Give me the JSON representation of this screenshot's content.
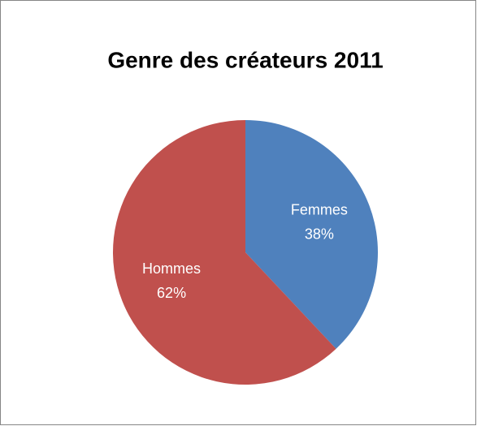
{
  "chart_data": {
    "type": "pie",
    "title": "Genre des créateurs 2011",
    "categories": [
      "Femmes",
      "Hommes"
    ],
    "values": [
      38,
      62
    ],
    "value_labels": [
      "38%",
      "62%"
    ],
    "colors": [
      "#4f81bd",
      "#c0504d"
    ]
  }
}
